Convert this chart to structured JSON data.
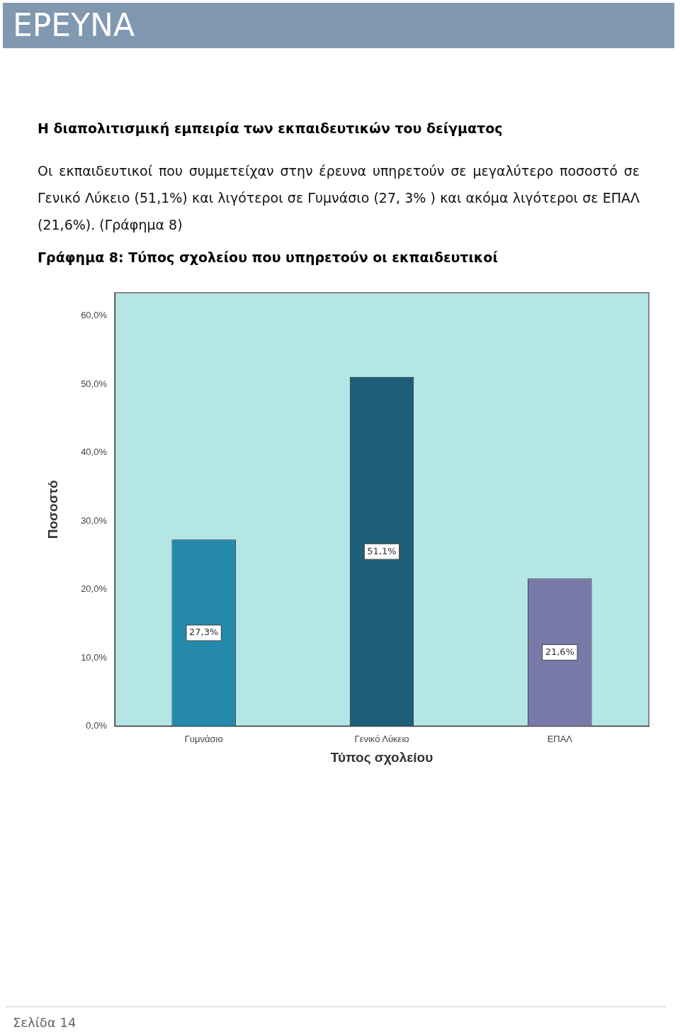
{
  "chart_data": {
    "type": "bar",
    "title": "Γράφημα 8: Τύπος σχολείου που υπηρετούν  οι εκπαιδευτικοί",
    "subtitle": "Οι εκπαιδευτικοί που συμμετείχαν στην έρευνα υπηρετούν σε μεγαλύτερο ποσοστό σε Γενικό Λύκειο (51,1%) και λιγότεροι σε Γυμνάσιο (27, 3% ) και ακόμα λιγότεροι σε ΕΠΑΛ (21,6%). (Γράφημα 8)",
    "annotations": [
      "ΕΡΕΥΝΑ",
      "Η διαπολιτισμική εμπειρία των εκπαιδευτικών του δείγματος",
      "Σελίδα 14"
    ],
    "xlabel": "Τύπος σχολείου",
    "ylabel": "Ποσοστό",
    "categories": [
      "Γυμνάσιο",
      "Γενικό Λύκειο",
      "ΕΠΑΛ"
    ],
    "values": [
      27.3,
      51.1,
      21.6
    ],
    "colors": [
      "#2589ab",
      "#1d5f78",
      "#7979a9"
    ],
    "value_labels": [
      "27,3%",
      "51,1%",
      "21,6%"
    ],
    "ylim": [
      0,
      63.4
    ],
    "yticks": [
      {
        "value": 0,
        "label": "0,0%"
      },
      {
        "value": 10,
        "label": "10,0%"
      },
      {
        "value": 20,
        "label": "20,0%"
      },
      {
        "value": 30,
        "label": "30,0%"
      },
      {
        "value": 40,
        "label": "40,0%"
      },
      {
        "value": 50,
        "label": "50,0%"
      },
      {
        "value": 60,
        "label": "60,0%"
      }
    ],
    "grid": false,
    "legend": false
  }
}
